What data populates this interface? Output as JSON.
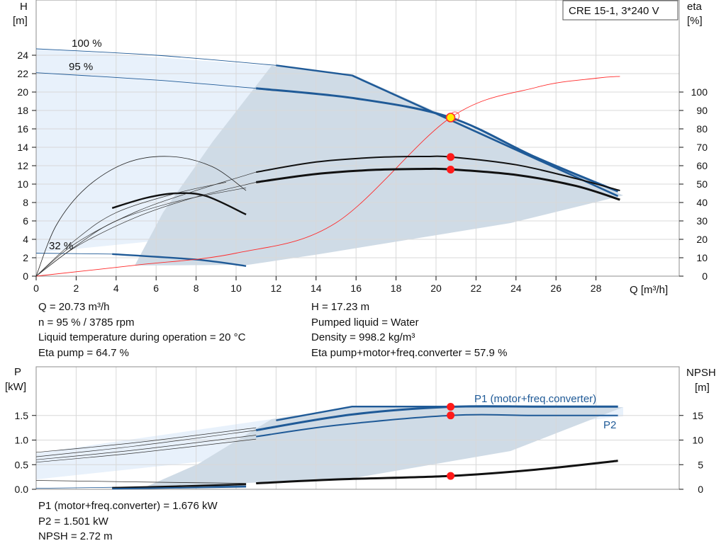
{
  "colors": {
    "curve_blue": "#1f5a97",
    "fill_light": "#e8f1fb",
    "fill_grey": "#cfdbe6",
    "system_curve": "#ff2a2a",
    "duty_point": "#ff1a1a",
    "duty_marker_fill": "#ffee00",
    "black": "#111111"
  },
  "title_box": "CRE 15-1, 3*240 V",
  "top_chart": {
    "y_left_label": "H\n[m]",
    "y_left_label_lines": [
      "H",
      "[m]"
    ],
    "y_right_label_lines": [
      "eta",
      "[%]"
    ],
    "x_label": "Q [m³/h]",
    "x_ticks": [
      "0",
      "2",
      "4",
      "6",
      "8",
      "10",
      "12",
      "14",
      "16",
      "18",
      "20",
      "22",
      "24",
      "26",
      "28"
    ],
    "y_left_ticks": [
      "0",
      "2",
      "4",
      "6",
      "8",
      "10",
      "12",
      "14",
      "16",
      "18",
      "20",
      "22",
      "24"
    ],
    "y_right_ticks": [
      "0",
      "10",
      "20",
      "30",
      "40",
      "50",
      "60",
      "70",
      "80",
      "90",
      "100"
    ],
    "speed_labels": [
      "100 %",
      "95 %",
      "32 %"
    ]
  },
  "info_top": {
    "left": [
      "Q = 20.73 m³/h",
      "n = 95 % / 3785 rpm",
      "Liquid temperature during operation = 20 °C",
      "Eta pump = 64.7 %"
    ],
    "right": [
      "H = 17.23 m",
      "Pumped liquid = Water",
      "Density = 998.2 kg/m³",
      "Eta pump+motor+freq.converter = 57.9 %"
    ]
  },
  "bottom_chart": {
    "y_left_label_lines": [
      "P",
      "[kW]"
    ],
    "y_right_label_lines": [
      "NPSH",
      "[m]"
    ],
    "y_left_ticks": [
      "0.0",
      "0.5",
      "1.0",
      "1.5"
    ],
    "y_right_ticks": [
      "0",
      "5",
      "10",
      "15"
    ],
    "series_labels": [
      "P1 (motor+freq.converter)",
      "P2"
    ]
  },
  "info_bottom": [
    "P1 (motor+freq.converter) = 1.676 kW",
    "P2 = 1.501 kW",
    "NPSH = 2.72 m"
  ],
  "chart_data": [
    {
      "type": "line",
      "title": "CRE 15-1, 3*240 V",
      "xlabel": "Q [m³/h]",
      "ylabel": "H [m]",
      "y2label": "eta [%]",
      "xlim": [
        0,
        30
      ],
      "ylim": [
        0,
        26
      ],
      "y2lim": [
        0,
        130
      ],
      "grid": true,
      "series": [
        {
          "name": "100 %",
          "x": [
            0,
            12,
            15.8,
            29.1
          ],
          "y": [
            24.7,
            22.9,
            21.8,
            8.7
          ]
        },
        {
          "name": "95 %",
          "x": [
            0,
            11,
            16,
            20.73,
            25,
            29.1
          ],
          "y": [
            22.1,
            20.4,
            19.3,
            17.23,
            12.9,
            9.2
          ]
        },
        {
          "name": "32 %",
          "x": [
            0,
            3.8,
            8,
            10.5
          ],
          "y": [
            2.5,
            2.4,
            1.8,
            1.1
          ]
        },
        {
          "x": [
            0,
            5,
            10,
            15,
            20.73,
            25,
            28,
            29.2
          ],
          "y": [
            0,
            1.2,
            2.5,
            5.8,
            17.23,
            20.5,
            21.5,
            21.7
          ]
        },
        {
          "x": [
            11,
            14,
            17,
            19.5,
            20.73,
            24,
            27,
            29.2
          ],
          "y": [
            11.3,
            12.4,
            12.9,
            13.0,
            12.95,
            12.1,
            10.6,
            9.3
          ]
        },
        {
          "x": [
            11,
            14,
            17,
            19.5,
            20.73,
            24,
            27,
            29.2
          ],
          "y": [
            10.2,
            11.1,
            11.55,
            11.65,
            11.6,
            11.0,
            9.8,
            8.3
          ]
        },
        {
          "x": [
            0,
            1,
            2.5,
            4.5,
            6.7,
            8.8,
            10.5
          ],
          "y": [
            0,
            5.5,
            9.6,
            12.3,
            13.0,
            11.9,
            9.3
          ]
        },
        {
          "x": [
            3.8,
            5.5,
            7,
            8.5,
            10.5
          ],
          "y": [
            7.4,
            8.5,
            9.0,
            8.7,
            6.7
          ]
        }
      ],
      "duty_point": {
        "x": 20.73,
        "y": 17.23
      },
      "eta_points": [
        {
          "x": 20.73,
          "eta": 64.7
        },
        {
          "x": 20.73,
          "eta": 57.9
        }
      ]
    },
    {
      "type": "line",
      "ylabel": "P [kW]",
      "y2label": "NPSH [m]",
      "xlim": [
        0,
        30
      ],
      "ylim": [
        0,
        2.0
      ],
      "y2lim": [
        0,
        20
      ],
      "grid": true,
      "series": [
        {
          "name": "P1 (motor+freq.converter)",
          "x": [
            0,
            5,
            11,
            15.8,
            20.73,
            25,
            29.1
          ],
          "y": [
            0.62,
            0.85,
            1.2,
            1.52,
            1.676,
            1.68,
            1.68
          ]
        },
        {
          "name": "P2",
          "x": [
            0,
            5,
            11,
            15,
            20.73,
            25,
            29.1
          ],
          "y": [
            0.53,
            0.76,
            1.07,
            1.3,
            1.501,
            1.5,
            1.5
          ]
        },
        {
          "x": [
            11,
            15,
            20.73,
            25,
            29.1
          ],
          "y": [
            1.22,
            2.0,
            2.72,
            4.0,
            5.8
          ]
        }
      ],
      "points": [
        {
          "x": 20.73,
          "P1": 1.676
        },
        {
          "x": 20.73,
          "P2": 1.501
        },
        {
          "x": 20.73,
          "NPSH": 2.72
        }
      ]
    }
  ]
}
